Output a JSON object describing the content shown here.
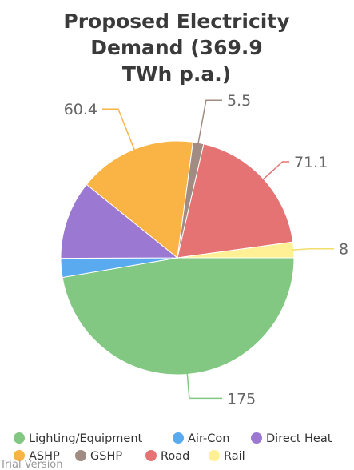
{
  "chart_data": {
    "type": "pie",
    "title": [
      "Proposed Electricity",
      "Demand (369.9",
      "TWh p.a.)"
    ],
    "slices": [
      {
        "name": "Lighting/Equipment",
        "value": 175,
        "color": "#82c882",
        "label": "175"
      },
      {
        "name": "Air-Con",
        "value": 9.7,
        "color": "#5aaaf0",
        "label": ""
      },
      {
        "name": "Direct Heat",
        "value": 40.2,
        "color": "#9b78d2",
        "label": ""
      },
      {
        "name": "ASHP",
        "value": 60.4,
        "color": "#fab446",
        "label": "60.4"
      },
      {
        "name": "GSHP",
        "value": 5.5,
        "color": "#a08c82",
        "label": "5.5"
      },
      {
        "name": "Road",
        "value": 71.1,
        "color": "#e67373",
        "label": "71.1"
      },
      {
        "name": "Rail",
        "value": 8,
        "color": "#fff096",
        "label": "8"
      }
    ],
    "legend_placement": "bottom",
    "start_direction": "right",
    "direction": "clockwise"
  },
  "watermark": "Trial Version"
}
